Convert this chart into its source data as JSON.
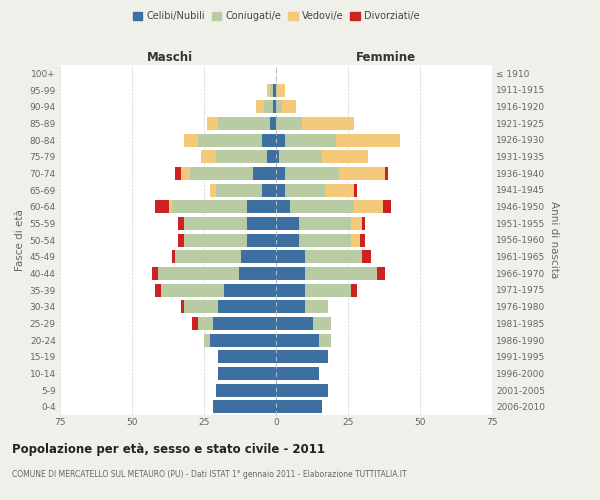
{
  "age_groups": [
    "0-4",
    "5-9",
    "10-14",
    "15-19",
    "20-24",
    "25-29",
    "30-34",
    "35-39",
    "40-44",
    "45-49",
    "50-54",
    "55-59",
    "60-64",
    "65-69",
    "70-74",
    "75-79",
    "80-84",
    "85-89",
    "90-94",
    "95-99",
    "100+"
  ],
  "birth_years": [
    "2006-2010",
    "2001-2005",
    "1996-2000",
    "1991-1995",
    "1986-1990",
    "1981-1985",
    "1976-1980",
    "1971-1975",
    "1966-1970",
    "1961-1965",
    "1956-1960",
    "1951-1955",
    "1946-1950",
    "1941-1945",
    "1936-1940",
    "1931-1935",
    "1926-1930",
    "1921-1925",
    "1916-1920",
    "1911-1915",
    "≤ 1910"
  ],
  "males": {
    "celibi": [
      22,
      21,
      20,
      20,
      23,
      22,
      20,
      18,
      13,
      12,
      10,
      10,
      10,
      5,
      8,
      3,
      5,
      2,
      1,
      1,
      0
    ],
    "coniugati": [
      0,
      0,
      0,
      0,
      2,
      5,
      12,
      22,
      28,
      23,
      22,
      22,
      26,
      16,
      22,
      18,
      22,
      18,
      3,
      1,
      0
    ],
    "vedovi": [
      0,
      0,
      0,
      0,
      0,
      0,
      0,
      0,
      0,
      0,
      0,
      0,
      1,
      2,
      3,
      5,
      5,
      4,
      3,
      1,
      0
    ],
    "divorziati": [
      0,
      0,
      0,
      0,
      0,
      2,
      1,
      2,
      2,
      1,
      2,
      2,
      5,
      0,
      2,
      0,
      0,
      0,
      0,
      0,
      0
    ]
  },
  "females": {
    "nubili": [
      16,
      18,
      15,
      18,
      15,
      13,
      10,
      10,
      10,
      10,
      8,
      8,
      5,
      3,
      3,
      1,
      3,
      0,
      0,
      0,
      0
    ],
    "coniugate": [
      0,
      0,
      0,
      0,
      4,
      6,
      8,
      16,
      25,
      20,
      18,
      18,
      22,
      14,
      19,
      15,
      18,
      9,
      2,
      0,
      0
    ],
    "vedove": [
      0,
      0,
      0,
      0,
      0,
      0,
      0,
      0,
      0,
      0,
      3,
      4,
      10,
      10,
      16,
      16,
      22,
      18,
      5,
      3,
      0
    ],
    "divorziate": [
      0,
      0,
      0,
      0,
      0,
      0,
      0,
      2,
      3,
      3,
      2,
      1,
      3,
      1,
      1,
      0,
      0,
      0,
      0,
      0,
      0
    ]
  },
  "colors": {
    "celibi": "#3d6fa3",
    "coniugati": "#b8cba3",
    "vedovi": "#f5c97a",
    "divorziati": "#cc2222"
  },
  "xlim": 75,
  "title": "Popolazione per età, sesso e stato civile - 2011",
  "subtitle": "COMUNE DI MERCATELLO SUL METAURO (PU) - Dati ISTAT 1° gennaio 2011 - Elaborazione TUTTITALIA.IT",
  "ylabel_left": "Fasce di età",
  "ylabel_right": "Anni di nascita",
  "xlabel_left": "Maschi",
  "xlabel_right": "Femmine",
  "bg_color": "#f0f0eb",
  "plot_bg": "#ffffff",
  "grid_color": "#d0d0d0",
  "center_line_color": "#b0b8c0"
}
